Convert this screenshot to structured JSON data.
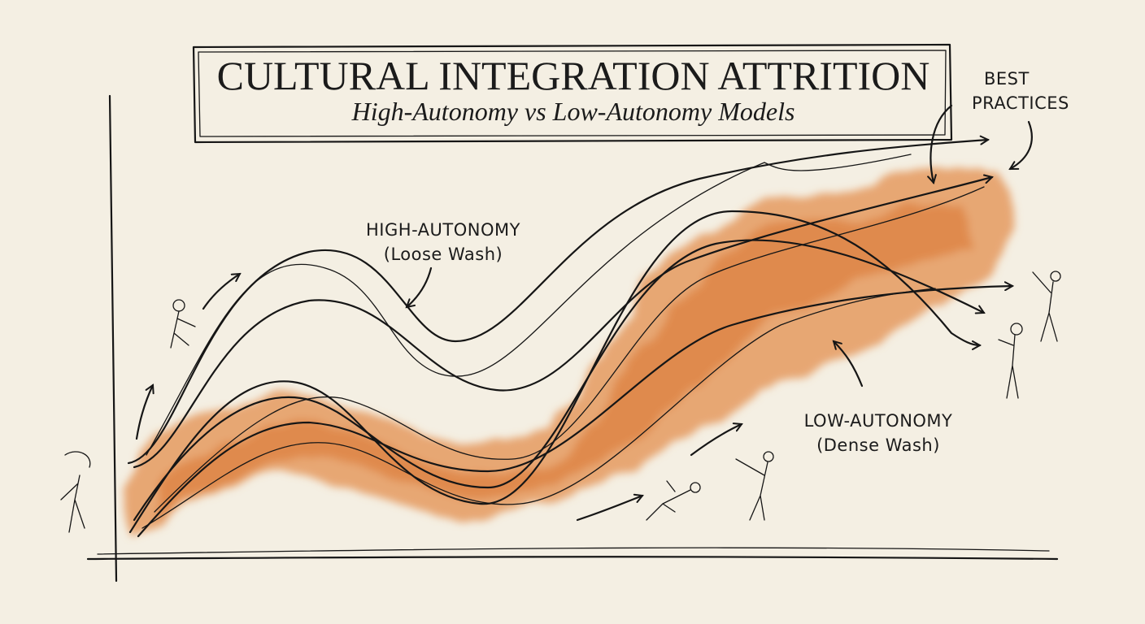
{
  "header": {
    "title": "CULTURAL INTEGRATION ATTRITION",
    "subtitle": "High-Autonomy vs Low-Autonomy Models"
  },
  "annotations": {
    "best_practices": [
      "BEST",
      "PRACTICES"
    ],
    "high_autonomy": [
      "HIGH-AUTONOMY",
      "(Loose Wash)"
    ],
    "low_autonomy": [
      "LOW-AUTONOMY",
      "(Dense Wash)"
    ]
  }
}
